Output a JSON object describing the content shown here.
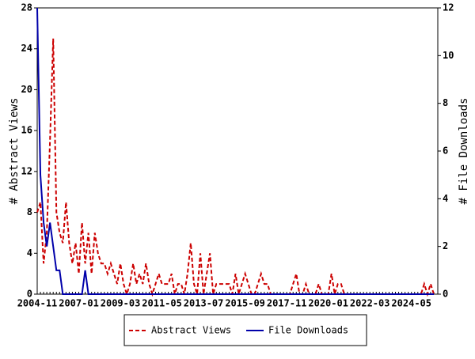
{
  "chart_data": {
    "type": "line",
    "categories": [
      "2004-11",
      null,
      null,
      null,
      null,
      null,
      null,
      null,
      null,
      null,
      null,
      null,
      null,
      "2007-01",
      null,
      null,
      null,
      null,
      null,
      null,
      null,
      null,
      null,
      null,
      null,
      null,
      "2009-03",
      null,
      null,
      null,
      null,
      null,
      null,
      null,
      null,
      null,
      null,
      null,
      null,
      "2011-05",
      null,
      null,
      null,
      null,
      null,
      null,
      null,
      null,
      null,
      null,
      null,
      null,
      "2013-07",
      null,
      null,
      null,
      null,
      null,
      null,
      null,
      null,
      null,
      null,
      null,
      null,
      "2015-09",
      null,
      null,
      null,
      null,
      null,
      null,
      null,
      null,
      null,
      null,
      null,
      null,
      "2017-11",
      null,
      null,
      null,
      null,
      null,
      null,
      null,
      null,
      null,
      null,
      null,
      null,
      "2020-01",
      null,
      null,
      null,
      null,
      null,
      null,
      null,
      null,
      null,
      null,
      null,
      null,
      "2022-03",
      null,
      null,
      null,
      null,
      null,
      null,
      null,
      null,
      null,
      null,
      null,
      null,
      "2024-05",
      null,
      null,
      null,
      null,
      null,
      null,
      null
    ],
    "series": [
      {
        "name": "Abstract Views",
        "color": "#cc0000",
        "axis": "y",
        "values": [
          8,
          9,
          3,
          6,
          15,
          25,
          8,
          6,
          5,
          9,
          5,
          3,
          5,
          2,
          7,
          3,
          6,
          2,
          6,
          4,
          3,
          3,
          2,
          3,
          2,
          1,
          3,
          1,
          0,
          1,
          3,
          1,
          2,
          1,
          3,
          1,
          0,
          1,
          2,
          1,
          1,
          1,
          2,
          0,
          1,
          1,
          0,
          2,
          5,
          1,
          0,
          4,
          0,
          2,
          4,
          0,
          1,
          1,
          1,
          1,
          1,
          0,
          2,
          0,
          1,
          2,
          1,
          0,
          0,
          1,
          2,
          1,
          1,
          0,
          0,
          0,
          0,
          0,
          0,
          0,
          1,
          2,
          0,
          0,
          1,
          0,
          0,
          0,
          1,
          0,
          0,
          0,
          2,
          0,
          1,
          1,
          0,
          0,
          0,
          0,
          0,
          0,
          0,
          0,
          0,
          0,
          0,
          0,
          0,
          0,
          0,
          0,
          0,
          0,
          0,
          0,
          0,
          0,
          0,
          0,
          0,
          1,
          0,
          1,
          0
        ]
      },
      {
        "name": "File Downloads",
        "color": "#0000aa",
        "axis": "y2",
        "values": [
          12,
          5,
          3,
          2,
          3,
          2,
          1,
          1,
          0,
          0,
          0,
          0,
          0,
          0,
          0,
          1,
          0,
          0,
          0,
          0,
          0,
          0,
          0,
          0,
          0,
          0,
          0,
          0,
          0,
          0,
          0,
          0,
          0,
          0,
          0,
          0,
          0,
          0,
          0,
          0,
          0,
          0,
          0,
          0,
          0,
          0,
          0,
          0,
          0,
          0,
          0,
          0,
          0,
          0,
          0,
          0,
          0,
          0,
          0,
          0,
          0,
          0,
          0,
          0,
          0,
          0,
          0,
          0,
          0,
          0,
          0,
          0,
          0,
          0,
          0,
          0,
          0,
          0,
          0,
          0,
          0,
          0,
          0,
          0,
          0,
          0,
          0,
          0,
          0,
          0,
          0,
          0,
          0,
          0,
          0,
          0,
          0,
          0,
          0,
          0,
          0,
          0,
          0,
          0,
          0,
          0,
          0,
          0,
          0,
          0,
          0,
          0,
          0,
          0,
          0,
          0,
          0,
          0,
          0,
          0,
          0,
          0,
          0,
          0,
          0
        ]
      }
    ],
    "ylabel": "# Abstract Views",
    "y2label": "# File Downloads",
    "ylim": [
      0,
      28
    ],
    "yticks": [
      0,
      4,
      8,
      12,
      16,
      20,
      24,
      28
    ],
    "y2lim": [
      0,
      12
    ],
    "y2ticks": [
      0,
      2,
      4,
      6,
      8,
      10,
      12
    ]
  }
}
